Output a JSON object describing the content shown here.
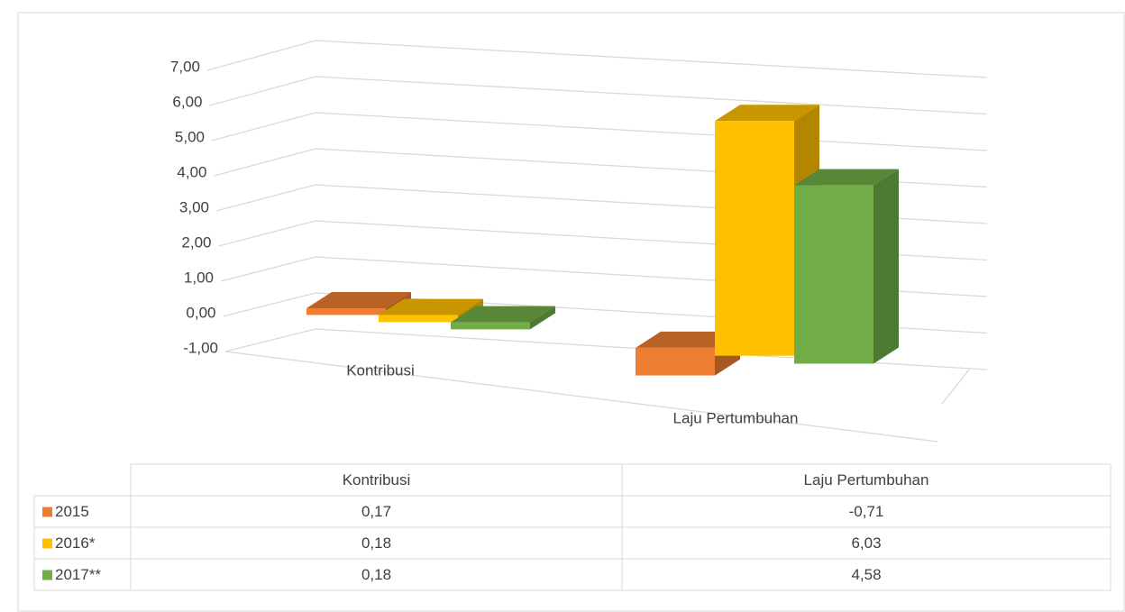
{
  "chart_data": {
    "type": "bar3d",
    "categories": [
      "Kontribusi",
      "Laju Pertumbuhan"
    ],
    "series": [
      {
        "name": "2015",
        "color": "#ED7D31",
        "values": [
          0.17,
          -0.71
        ],
        "value_labels": [
          "0,17",
          "-0,71"
        ]
      },
      {
        "name": "2016*",
        "color": "#FFC000",
        "values": [
          0.18,
          6.03
        ],
        "value_labels": [
          "0,18",
          "6,03"
        ]
      },
      {
        "name": "2017**",
        "color": "#70AD47",
        "values": [
          0.18,
          4.58
        ],
        "value_labels": [
          "0,18",
          "4,58"
        ]
      }
    ],
    "ylim": [
      -1,
      7
    ],
    "yticks": [
      {
        "value": -1,
        "label": "-1,00"
      },
      {
        "value": 0,
        "label": "0,00"
      },
      {
        "value": 1,
        "label": "1,00"
      },
      {
        "value": 2,
        "label": "2,00"
      },
      {
        "value": 3,
        "label": "3,00"
      },
      {
        "value": 4,
        "label": "4,00"
      },
      {
        "value": 5,
        "label": "5,00"
      },
      {
        "value": 6,
        "label": "6,00"
      },
      {
        "value": 7,
        "label": "7,00"
      }
    ],
    "grid": true
  }
}
